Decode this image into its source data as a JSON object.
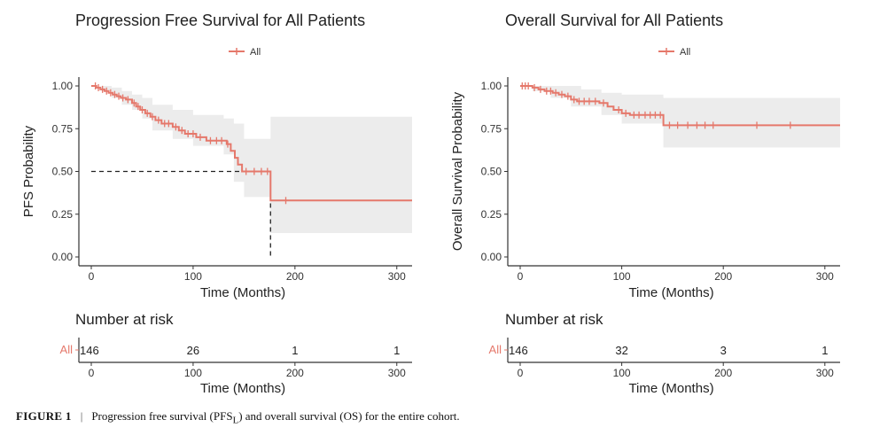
{
  "colors": {
    "curve": "#e5786b",
    "ci_band": "#ececec",
    "axis": "#333333",
    "median_line": "#222222"
  },
  "chart_data": [
    {
      "type": "line",
      "title": "Progression Free Survival for All Patients",
      "xlabel": "Time (Months)",
      "ylabel": "PFS Probability",
      "xlim": [
        0,
        315
      ],
      "ylim": [
        0,
        1
      ],
      "xticks": [
        0,
        100,
        200,
        300
      ],
      "yticks": [
        "0.00",
        "0.25",
        "0.50",
        "0.75",
        "1.00"
      ],
      "legend": {
        "position": "top",
        "entries": [
          "All"
        ]
      },
      "series": [
        {
          "name": "All",
          "steps": [
            [
              0,
              1.0
            ],
            [
              5,
              0.99
            ],
            [
              9,
              0.98
            ],
            [
              13,
              0.97
            ],
            [
              17,
              0.96
            ],
            [
              21,
              0.95
            ],
            [
              25,
              0.94
            ],
            [
              29,
              0.93
            ],
            [
              34,
              0.92
            ],
            [
              40,
              0.9
            ],
            [
              44,
              0.88
            ],
            [
              48,
              0.86
            ],
            [
              53,
              0.84
            ],
            [
              58,
              0.82
            ],
            [
              63,
              0.8
            ],
            [
              69,
              0.78
            ],
            [
              80,
              0.76
            ],
            [
              86,
              0.74
            ],
            [
              92,
              0.72
            ],
            [
              103,
              0.7
            ],
            [
              113,
              0.68
            ],
            [
              133,
              0.66
            ],
            [
              137,
              0.62
            ],
            [
              141,
              0.58
            ],
            [
              144,
              0.54
            ],
            [
              148,
              0.5
            ],
            [
              176,
              0.33
            ],
            [
              315,
              0.33
            ]
          ],
          "ci_upper": [
            [
              0,
              1.0
            ],
            [
              10,
              1.0
            ],
            [
              20,
              0.99
            ],
            [
              30,
              0.97
            ],
            [
              40,
              0.95
            ],
            [
              50,
              0.93
            ],
            [
              60,
              0.89
            ],
            [
              80,
              0.86
            ],
            [
              100,
              0.83
            ],
            [
              130,
              0.81
            ],
            [
              140,
              0.78
            ],
            [
              150,
              0.69
            ],
            [
              176,
              0.69
            ],
            [
              176,
              0.82
            ],
            [
              315,
              0.82
            ]
          ],
          "ci_lower": [
            [
              0,
              1.0
            ],
            [
              10,
              0.97
            ],
            [
              20,
              0.93
            ],
            [
              30,
              0.89
            ],
            [
              40,
              0.86
            ],
            [
              50,
              0.81
            ],
            [
              60,
              0.74
            ],
            [
              80,
              0.69
            ],
            [
              100,
              0.65
            ],
            [
              130,
              0.6
            ],
            [
              140,
              0.44
            ],
            [
              150,
              0.35
            ],
            [
              176,
              0.35
            ],
            [
              176,
              0.14
            ],
            [
              315,
              0.14
            ]
          ],
          "censor_times": [
            4,
            7,
            11,
            15,
            19,
            23,
            27,
            31,
            36,
            42,
            46,
            50,
            55,
            60,
            66,
            72,
            76,
            83,
            89,
            95,
            100,
            107,
            117,
            123,
            128,
            134,
            152,
            160,
            167,
            173,
            191
          ]
        }
      ],
      "median": {
        "time": 176,
        "prob": 0.5
      },
      "risk_table": {
        "title": "Number at risk",
        "xlabel": "Time (Months)",
        "strata": "All",
        "times": [
          0,
          100,
          200,
          300
        ],
        "counts": [
          146,
          26,
          1,
          1
        ]
      }
    },
    {
      "type": "line",
      "title": "Overall Survival for All Patients",
      "xlabel": "Time (Months)",
      "ylabel": "Overall Survival Probability",
      "xlim": [
        0,
        315
      ],
      "ylim": [
        0,
        1
      ],
      "xticks": [
        0,
        100,
        200,
        300
      ],
      "yticks": [
        "0.00",
        "0.25",
        "0.50",
        "0.75",
        "1.00"
      ],
      "legend": {
        "position": "top",
        "entries": [
          "All"
        ]
      },
      "series": [
        {
          "name": "All",
          "steps": [
            [
              0,
              1.0
            ],
            [
              12,
              0.99
            ],
            [
              18,
              0.98
            ],
            [
              24,
              0.97
            ],
            [
              32,
              0.96
            ],
            [
              38,
              0.95
            ],
            [
              44,
              0.94
            ],
            [
              50,
              0.92
            ],
            [
              56,
              0.91
            ],
            [
              78,
              0.9
            ],
            [
              86,
              0.88
            ],
            [
              92,
              0.86
            ],
            [
              100,
              0.84
            ],
            [
              108,
              0.83
            ],
            [
              141,
              0.77
            ],
            [
              315,
              0.77
            ]
          ],
          "ci_upper": [
            [
              0,
              1.0
            ],
            [
              40,
              1.0
            ],
            [
              60,
              0.98
            ],
            [
              80,
              0.96
            ],
            [
              100,
              0.95
            ],
            [
              141,
              0.93
            ],
            [
              315,
              0.93
            ]
          ],
          "ci_lower": [
            [
              0,
              1.0
            ],
            [
              12,
              0.97
            ],
            [
              30,
              0.93
            ],
            [
              50,
              0.88
            ],
            [
              80,
              0.83
            ],
            [
              100,
              0.78
            ],
            [
              141,
              0.64
            ],
            [
              315,
              0.64
            ]
          ],
          "censor_times": [
            2,
            5,
            8,
            14,
            20,
            26,
            30,
            35,
            41,
            47,
            53,
            58,
            63,
            68,
            74,
            82,
            97,
            104,
            112,
            117,
            123,
            128,
            133,
            138,
            147,
            155,
            165,
            174,
            182,
            190,
            233,
            266
          ]
        }
      ],
      "risk_table": {
        "title": "Number at risk",
        "xlabel": "Time (Months)",
        "strata": "All",
        "times": [
          0,
          100,
          200,
          300
        ],
        "counts": [
          146,
          32,
          3,
          1
        ]
      }
    }
  ],
  "caption": {
    "label": "FIGURE 1",
    "separator": "|",
    "text_before": "Progression free survival (PFS",
    "subscript": "L",
    "text_after": ") and overall survival (OS) for the entire cohort."
  }
}
